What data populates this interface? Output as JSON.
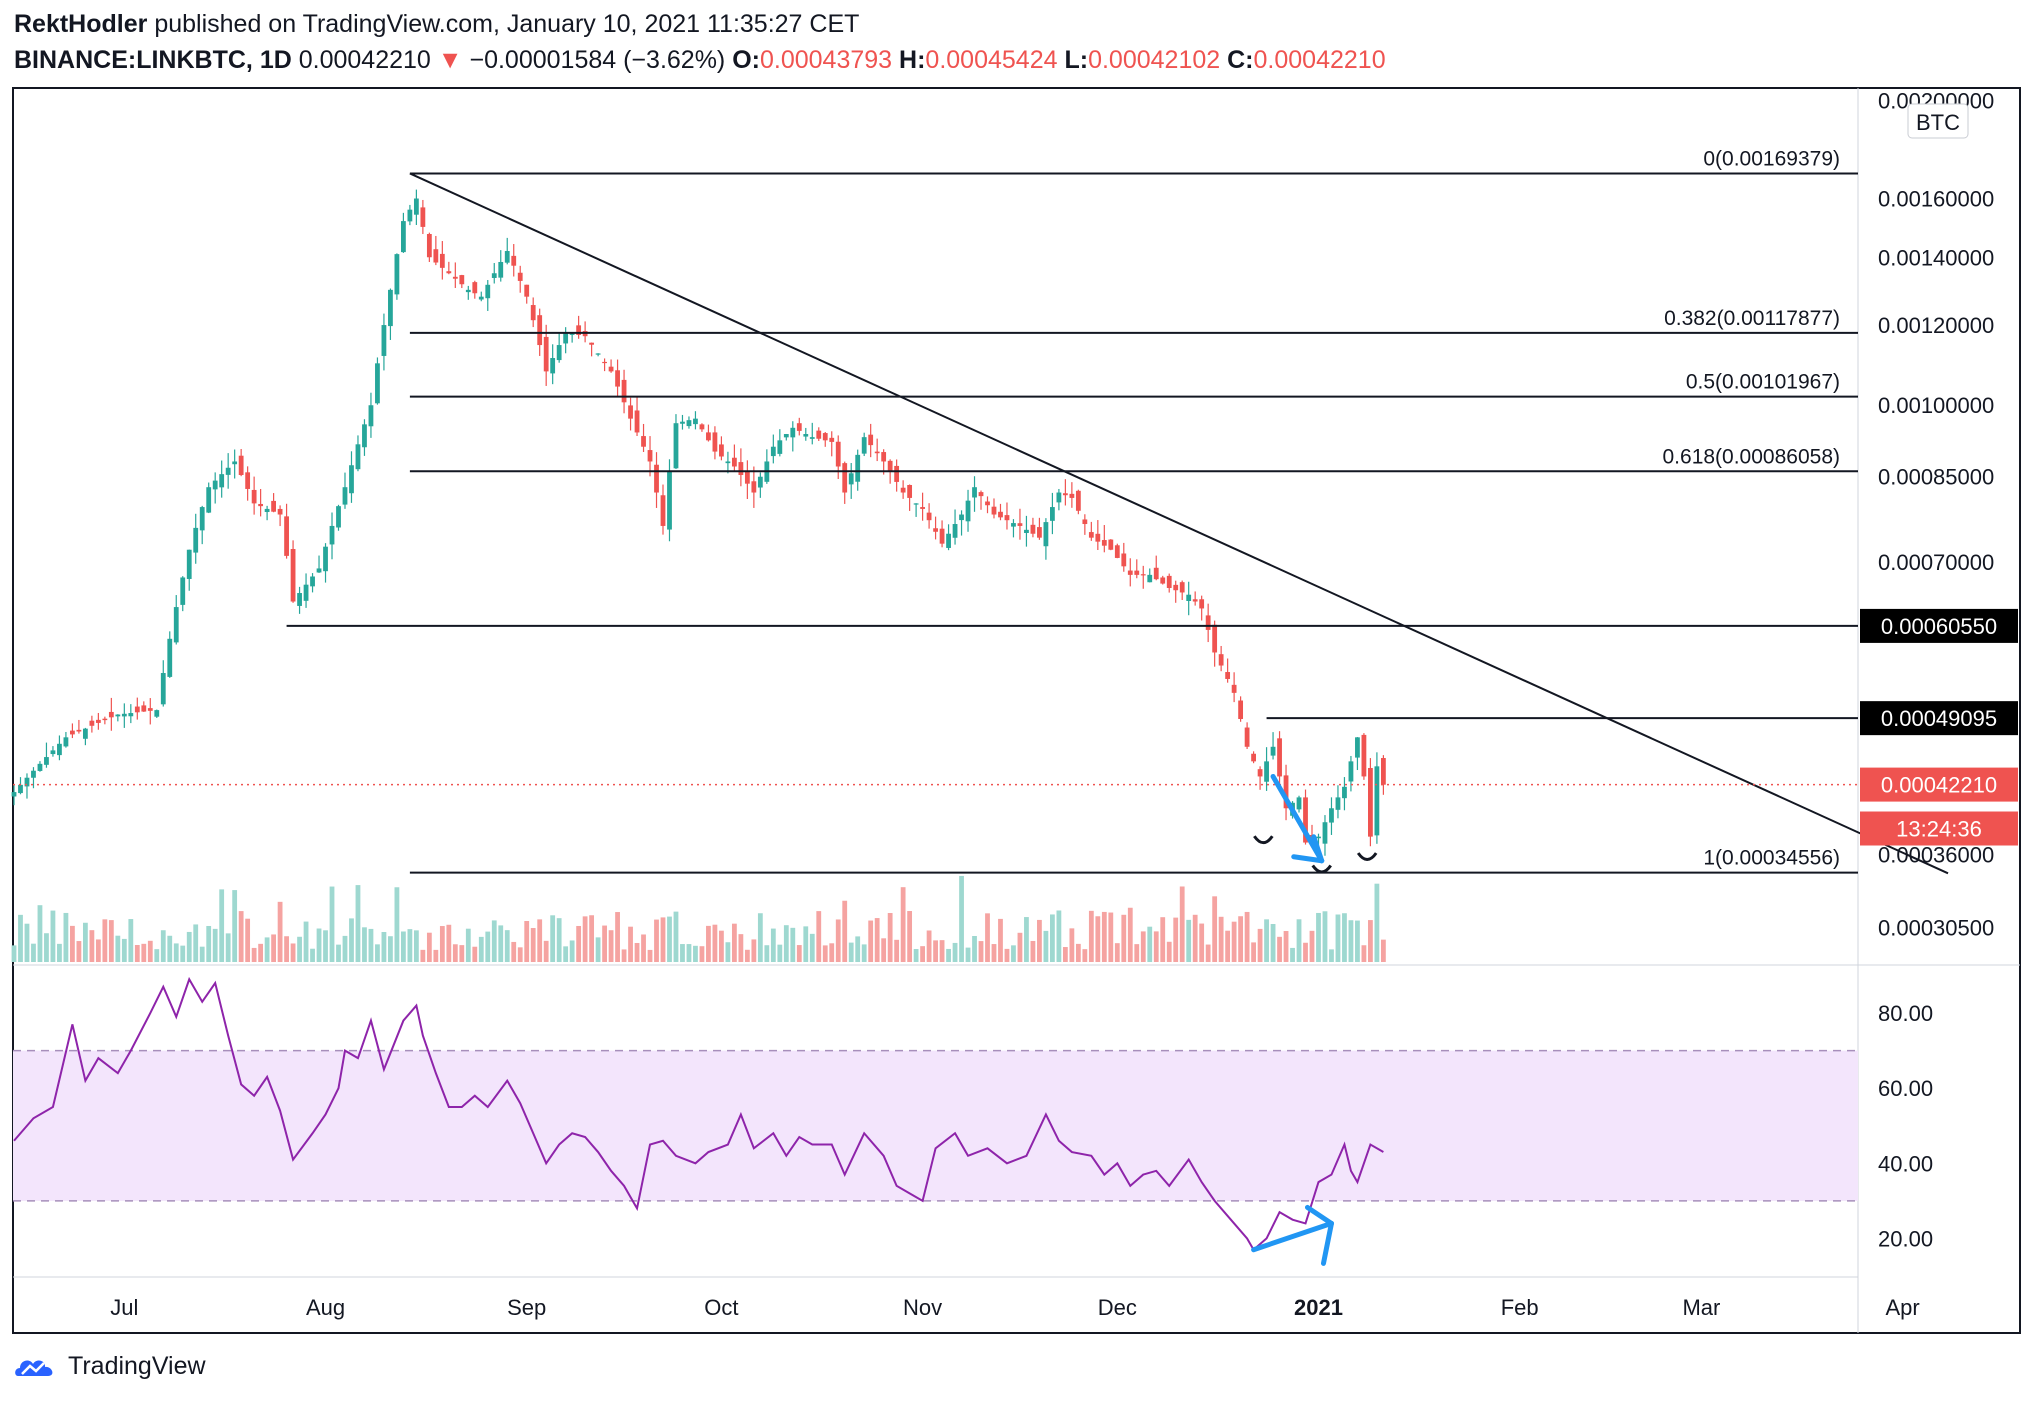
{
  "header": {
    "author": "RektHodler",
    "published_text": " published on TradingView.com, January 10, 2021 11:35:27 CET",
    "symbol": "BINANCE:LINKBTC, 1D",
    "last_price": "0.00042210",
    "change_arrow": "▼",
    "change": "−0.00001584 (−3.62%)",
    "o_label": "O:",
    "o_value": "0.00043793",
    "h_label": "H:",
    "h_value": "0.00045424",
    "l_label": "L:",
    "l_value": "0.00042102",
    "c_label": "C:",
    "c_value": "0.00042210"
  },
  "footer": {
    "brand": "TradingView"
  },
  "chart_data": {
    "type": "candlestick",
    "scale": "log",
    "currency_label": "BTC",
    "x_tick_labels": [
      {
        "label": "Jul",
        "day": 17,
        "bold": false
      },
      {
        "label": "Aug",
        "day": 48,
        "bold": false
      },
      {
        "label": "Sep",
        "day": 79,
        "bold": false
      },
      {
        "label": "Oct",
        "day": 109,
        "bold": false
      },
      {
        "label": "Nov",
        "day": 140,
        "bold": false
      },
      {
        "label": "Dec",
        "day": 170,
        "bold": false
      },
      {
        "label": "2021",
        "day": 201,
        "bold": true
      },
      {
        "label": "Feb",
        "day": 232,
        "bold": false
      },
      {
        "label": "Mar",
        "day": 260,
        "bold": false
      },
      {
        "label": "Apr",
        "day": 291,
        "bold": false
      }
    ],
    "price_axis": {
      "range": [
        0.000282,
        0.00202
      ],
      "ticks": [
        "0.00200000",
        "0.00160000",
        "0.00140000",
        "0.00120000",
        "0.00100000",
        "0.00085000",
        "0.00070000",
        "0.00036000",
        "0.00030500"
      ]
    },
    "price_labels": [
      {
        "value": 0.0006055,
        "text": "0.00060550",
        "style": "black"
      },
      {
        "value": 0.00049095,
        "text": "0.00049095",
        "style": "black"
      },
      {
        "value": 0.0004221,
        "text": "0.00042210",
        "style": "red"
      },
      {
        "value": 0.000382,
        "text": "13:24:36",
        "style": "red"
      }
    ],
    "fibonacci": [
      {
        "level": "0",
        "price": 0.00169379,
        "label": "0(0.00169379)"
      },
      {
        "level": "0.382",
        "price": 0.00117877,
        "label": "0.382(0.00117877)"
      },
      {
        "level": "0.5",
        "price": 0.00101967,
        "label": "0.5(0.00101967)"
      },
      {
        "level": "0.618",
        "price": 0.00086058,
        "label": "0.618(0.00086058)"
      },
      {
        "level": "1",
        "price": 0.00034556,
        "label": "1(0.00034556)"
      }
    ],
    "fib_start_day": 61,
    "horizontal_lines": [
      {
        "price": 0.0006055,
        "from_day": 42
      },
      {
        "price": 0.00049095,
        "from_day": 193
      }
    ],
    "trendline": {
      "from": {
        "day": 61,
        "price": 0.00169379
      },
      "to": {
        "day": 298,
        "price": 0.000345
      }
    },
    "current_price": 0.0004221,
    "close_path": [
      [
        0,
        0.000415
      ],
      [
        8,
        0.00047
      ],
      [
        16,
        0.000495
      ],
      [
        22,
        0.0005
      ],
      [
        27,
        0.00072
      ],
      [
        30,
        0.00083
      ],
      [
        34,
        0.00088
      ],
      [
        37,
        0.0008
      ],
      [
        41,
        0.00078
      ],
      [
        43,
        0.00064
      ],
      [
        47,
        0.00069
      ],
      [
        51,
        0.00083
      ],
      [
        55,
        0.001
      ],
      [
        58,
        0.0013
      ],
      [
        60,
        0.00152
      ],
      [
        62,
        0.0016
      ],
      [
        64,
        0.0014
      ],
      [
        67,
        0.00135
      ],
      [
        70,
        0.0013
      ],
      [
        72,
        0.00128
      ],
      [
        76,
        0.00142
      ],
      [
        79,
        0.00128
      ],
      [
        82,
        0.00108
      ],
      [
        85,
        0.00118
      ],
      [
        88,
        0.00117
      ],
      [
        92,
        0.00108
      ],
      [
        95,
        0.00097
      ],
      [
        98,
        0.00088
      ],
      [
        100,
        0.00076
      ],
      [
        102,
        0.00096
      ],
      [
        105,
        0.00097
      ],
      [
        108,
        0.0009
      ],
      [
        111,
        0.00087
      ],
      [
        114,
        0.00082
      ],
      [
        117,
        0.00091
      ],
      [
        120,
        0.00095
      ],
      [
        123,
        0.00093
      ],
      [
        126,
        0.00092
      ],
      [
        128,
        0.00082
      ],
      [
        131,
        0.00093
      ],
      [
        134,
        0.00088
      ],
      [
        137,
        0.00082
      ],
      [
        140,
        0.00079
      ],
      [
        143,
        0.00073
      ],
      [
        146,
        0.00078
      ],
      [
        148,
        0.00083
      ],
      [
        151,
        0.00078
      ],
      [
        155,
        0.00076
      ],
      [
        158,
        0.00074
      ],
      [
        161,
        0.00082
      ],
      [
        163,
        0.00081
      ],
      [
        166,
        0.00074
      ],
      [
        169,
        0.00072
      ],
      [
        172,
        0.00068
      ],
      [
        175,
        0.00068
      ],
      [
        178,
        0.00066
      ],
      [
        181,
        0.00065
      ],
      [
        183,
        0.00063
      ],
      [
        185,
        0.00057
      ],
      [
        188,
        0.00052
      ],
      [
        190,
        0.00046
      ],
      [
        192,
        0.00043
      ],
      [
        194,
        0.00046
      ],
      [
        196,
        0.0004
      ],
      [
        198,
        0.00041
      ],
      [
        199,
        0.00037
      ],
      [
        201,
        0.000375
      ],
      [
        203,
        0.0004
      ],
      [
        205,
        0.00042
      ],
      [
        207,
        0.00047
      ],
      [
        208,
        0.00043
      ],
      [
        209,
        0.000375
      ],
      [
        210,
        0.00044
      ],
      [
        211,
        0.000422
      ]
    ],
    "rsi": {
      "range": [
        10,
        92
      ],
      "upper_band": 70,
      "lower_band": 30,
      "ticks": [
        "80.00",
        "60.00",
        "40.00",
        "20.00"
      ],
      "path": [
        [
          0,
          46
        ],
        [
          3,
          52
        ],
        [
          6,
          55
        ],
        [
          9,
          77
        ],
        [
          11,
          62
        ],
        [
          13,
          68
        ],
        [
          16,
          64
        ],
        [
          18,
          70
        ],
        [
          21,
          80
        ],
        [
          23,
          87
        ],
        [
          25,
          79
        ],
        [
          27,
          89
        ],
        [
          29,
          83
        ],
        [
          31,
          88
        ],
        [
          33,
          74
        ],
        [
          35,
          61
        ],
        [
          37,
          58
        ],
        [
          39,
          63
        ],
        [
          41,
          54
        ],
        [
          43,
          41
        ],
        [
          46,
          48
        ],
        [
          48,
          53
        ],
        [
          50,
          60
        ],
        [
          51,
          70
        ],
        [
          53,
          68
        ],
        [
          55,
          78
        ],
        [
          57,
          65
        ],
        [
          60,
          78
        ],
        [
          62,
          82
        ],
        [
          63,
          74
        ],
        [
          65,
          64
        ],
        [
          67,
          55
        ],
        [
          69,
          55
        ],
        [
          71,
          58
        ],
        [
          73,
          55
        ],
        [
          76,
          62
        ],
        [
          78,
          56
        ],
        [
          80,
          48
        ],
        [
          82,
          40
        ],
        [
          84,
          45
        ],
        [
          86,
          48
        ],
        [
          88,
          47
        ],
        [
          90,
          43
        ],
        [
          92,
          38
        ],
        [
          94,
          34
        ],
        [
          96,
          28
        ],
        [
          98,
          45
        ],
        [
          100,
          46
        ],
        [
          102,
          42
        ],
        [
          105,
          40
        ],
        [
          107,
          43
        ],
        [
          110,
          45
        ],
        [
          112,
          53
        ],
        [
          114,
          44
        ],
        [
          117,
          48
        ],
        [
          119,
          42
        ],
        [
          121,
          47
        ],
        [
          123,
          45
        ],
        [
          126,
          45
        ],
        [
          128,
          37
        ],
        [
          131,
          48
        ],
        [
          134,
          42
        ],
        [
          136,
          34
        ],
        [
          138,
          32
        ],
        [
          140,
          30
        ],
        [
          142,
          44
        ],
        [
          145,
          48
        ],
        [
          147,
          42
        ],
        [
          150,
          44
        ],
        [
          153,
          40
        ],
        [
          156,
          42
        ],
        [
          159,
          53
        ],
        [
          161,
          46
        ],
        [
          163,
          43
        ],
        [
          166,
          42
        ],
        [
          168,
          37
        ],
        [
          170,
          40
        ],
        [
          172,
          34
        ],
        [
          174,
          37
        ],
        [
          176,
          38
        ],
        [
          178,
          34
        ],
        [
          181,
          41
        ],
        [
          183,
          35
        ],
        [
          185,
          30
        ],
        [
          188,
          24
        ],
        [
          190,
          20
        ],
        [
          191,
          17
        ],
        [
          193,
          20
        ],
        [
          195,
          27
        ],
        [
          197,
          25
        ],
        [
          199,
          24
        ],
        [
          201,
          35
        ],
        [
          203,
          37
        ],
        [
          205,
          45
        ],
        [
          206,
          38
        ],
        [
          207,
          35
        ],
        [
          209,
          45
        ],
        [
          211,
          43
        ]
      ]
    },
    "annotations": {
      "price_arrow_color": "#2196f3",
      "rsi_arrow_color": "#2196f3"
    }
  }
}
